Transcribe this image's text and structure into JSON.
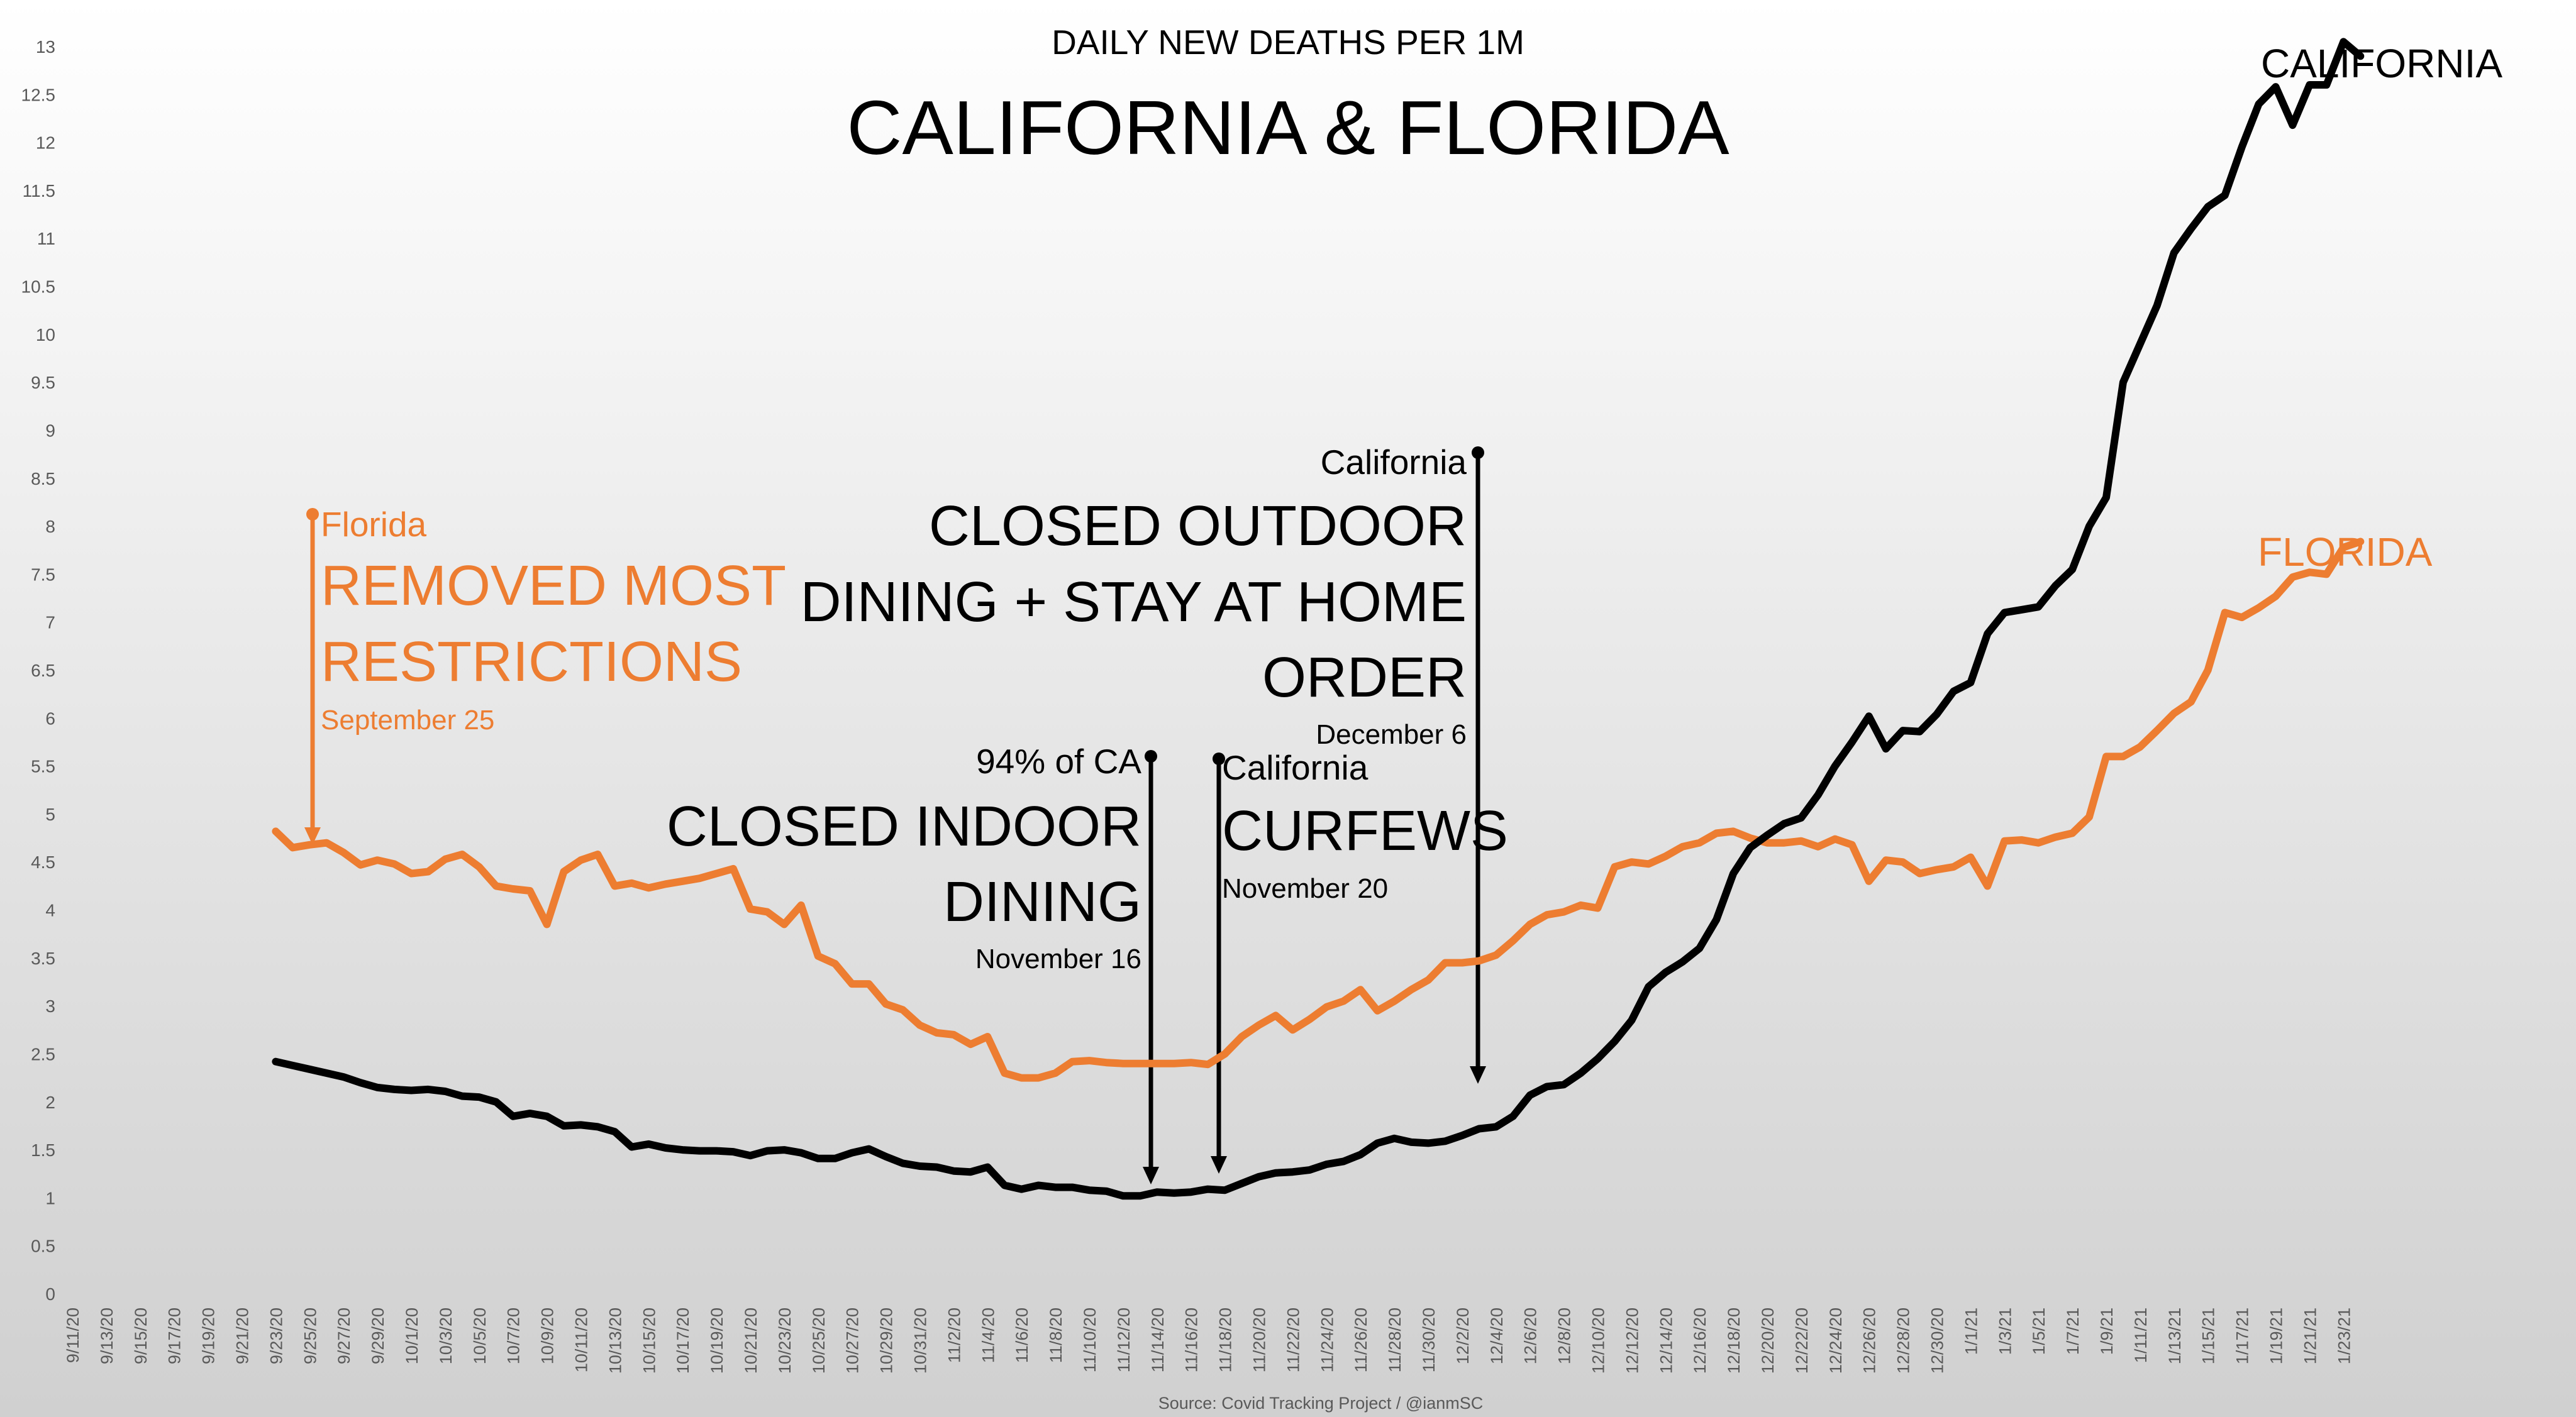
{
  "chart_data": {
    "type": "line",
    "title": "CALIFORNIA & FLORIDA",
    "subtitle": "DAILY NEW DEATHS PER 1M",
    "source": "Source: Covid Tracking Project / @ianmSC",
    "ylim": [
      0,
      13
    ],
    "y_ticks": [
      0,
      0.5,
      1,
      1.5,
      2,
      2.5,
      3,
      3.5,
      4,
      4.5,
      5,
      5.5,
      6,
      6.5,
      7,
      7.5,
      8,
      8.5,
      9,
      9.5,
      10,
      10.5,
      11,
      11.5,
      12,
      12.5,
      13
    ],
    "x_tick_labels": [
      "9/11/20",
      "9/13/20",
      "9/15/20",
      "9/17/20",
      "9/19/20",
      "9/21/20",
      "9/23/20",
      "9/25/20",
      "9/27/20",
      "9/29/20",
      "10/1/20",
      "10/3/20",
      "10/5/20",
      "10/7/20",
      "10/9/20",
      "10/11/20",
      "10/13/20",
      "10/15/20",
      "10/17/20",
      "10/19/20",
      "10/21/20",
      "10/23/20",
      "10/25/20",
      "10/27/20",
      "10/29/20",
      "10/31/20",
      "11/2/20",
      "11/4/20",
      "11/6/20",
      "11/8/20",
      "11/10/20",
      "11/12/20",
      "11/14/20",
      "11/16/20",
      "11/18/20",
      "11/20/20",
      "11/22/20",
      "11/24/20",
      "11/26/20",
      "11/28/20",
      "11/30/20",
      "12/2/20",
      "12/4/20",
      "12/6/20",
      "12/8/20",
      "12/10/20",
      "12/12/20",
      "12/14/20",
      "12/16/20",
      "12/18/20",
      "12/20/20",
      "12/22/20",
      "12/24/20",
      "12/26/20",
      "12/28/20",
      "12/30/20",
      "1/1/21",
      "1/3/21",
      "1/5/21",
      "1/7/21",
      "1/9/21",
      "1/11/21",
      "1/13/21",
      "1/15/21",
      "1/17/21",
      "1/19/21",
      "1/21/21",
      "1/23/21"
    ],
    "series_start_index": 12,
    "series": [
      {
        "name": "CALIFORNIA",
        "color": "#000000",
        "values": [
          2.42,
          2.38,
          2.34,
          2.3,
          2.26,
          2.2,
          2.15,
          2.13,
          2.12,
          2.13,
          2.11,
          2.06,
          2.05,
          2.0,
          1.85,
          1.88,
          1.85,
          1.75,
          1.76,
          1.74,
          1.69,
          1.53,
          1.56,
          1.52,
          1.5,
          1.49,
          1.49,
          1.48,
          1.44,
          1.49,
          1.5,
          1.47,
          1.41,
          1.41,
          1.47,
          1.51,
          1.43,
          1.36,
          1.33,
          1.32,
          1.28,
          1.27,
          1.32,
          1.13,
          1.09,
          1.13,
          1.11,
          1.11,
          1.08,
          1.07,
          1.02,
          1.02,
          1.06,
          1.05,
          1.06,
          1.09,
          1.08,
          1.15,
          1.22,
          1.26,
          1.27,
          1.29,
          1.35,
          1.38,
          1.45,
          1.57,
          1.62,
          1.58,
          1.57,
          1.59,
          1.65,
          1.72,
          1.74,
          1.85,
          2.07,
          2.16,
          2.18,
          2.3,
          2.45,
          2.63,
          2.85,
          3.2,
          3.35,
          3.46,
          3.6,
          3.9,
          4.38,
          4.65,
          4.78,
          4.9,
          4.96,
          5.2,
          5.5,
          5.75,
          6.02,
          5.68,
          5.87,
          5.86,
          6.04,
          6.28,
          6.37,
          6.88,
          7.1,
          7.13,
          7.16,
          7.38,
          7.55,
          8.0,
          8.3,
          9.5,
          9.9,
          10.3,
          10.85,
          11.1,
          11.33,
          11.45,
          11.95,
          12.4,
          12.58,
          12.18,
          12.6,
          12.6,
          13.05,
          12.9
        ]
      },
      {
        "name": "FLORIDA",
        "color": "#ed7d31",
        "values": [
          4.82,
          4.65,
          4.68,
          4.7,
          4.6,
          4.47,
          4.52,
          4.48,
          4.38,
          4.4,
          4.53,
          4.58,
          4.45,
          4.25,
          4.22,
          4.2,
          3.85,
          4.4,
          4.52,
          4.58,
          4.25,
          4.28,
          4.23,
          4.27,
          4.3,
          4.33,
          4.38,
          4.43,
          4.01,
          3.98,
          3.85,
          4.05,
          3.52,
          3.44,
          3.23,
          3.23,
          3.02,
          2.96,
          2.8,
          2.72,
          2.7,
          2.6,
          2.68,
          2.3,
          2.25,
          2.25,
          2.3,
          2.42,
          2.43,
          2.41,
          2.4,
          2.4,
          2.4,
          2.4,
          2.41,
          2.39,
          2.5,
          2.68,
          2.8,
          2.9,
          2.75,
          2.86,
          2.99,
          3.05,
          3.17,
          2.95,
          3.05,
          3.17,
          3.27,
          3.45,
          3.45,
          3.47,
          3.53,
          3.68,
          3.85,
          3.95,
          3.98,
          4.05,
          4.02,
          4.45,
          4.5,
          4.48,
          4.56,
          4.66,
          4.7,
          4.8,
          4.82,
          4.75,
          4.7,
          4.7,
          4.72,
          4.66,
          4.74,
          4.68,
          4.3,
          4.52,
          4.5,
          4.38,
          4.42,
          4.45,
          4.55,
          4.25,
          4.72,
          4.73,
          4.7,
          4.76,
          4.8,
          4.97,
          5.6,
          5.6,
          5.7,
          5.87,
          6.05,
          6.17,
          6.5,
          7.1,
          7.05,
          7.15,
          7.27,
          7.47,
          7.52,
          7.5,
          7.78,
          7.84
        ]
      }
    ]
  },
  "annotations": {
    "florida": {
      "label": "Florida",
      "line1": "REMOVED MOST",
      "line2": "RESTRICTIONS",
      "date": "September 25"
    },
    "indoor": {
      "label": "94% of CA",
      "line1": "CLOSED INDOOR",
      "line2": "DINING",
      "date": "November 16"
    },
    "curfew": {
      "label": "California",
      "line1": "CURFEWS",
      "date": "November 20"
    },
    "outdoor": {
      "label": "California",
      "line1": "CLOSED OUTDOOR",
      "line2": "DINING + STAY AT HOME",
      "line3": "ORDER",
      "date": "December 6"
    }
  },
  "colors": {
    "california": "#000000",
    "florida": "#ed7d31",
    "axis_text": "#595959"
  }
}
